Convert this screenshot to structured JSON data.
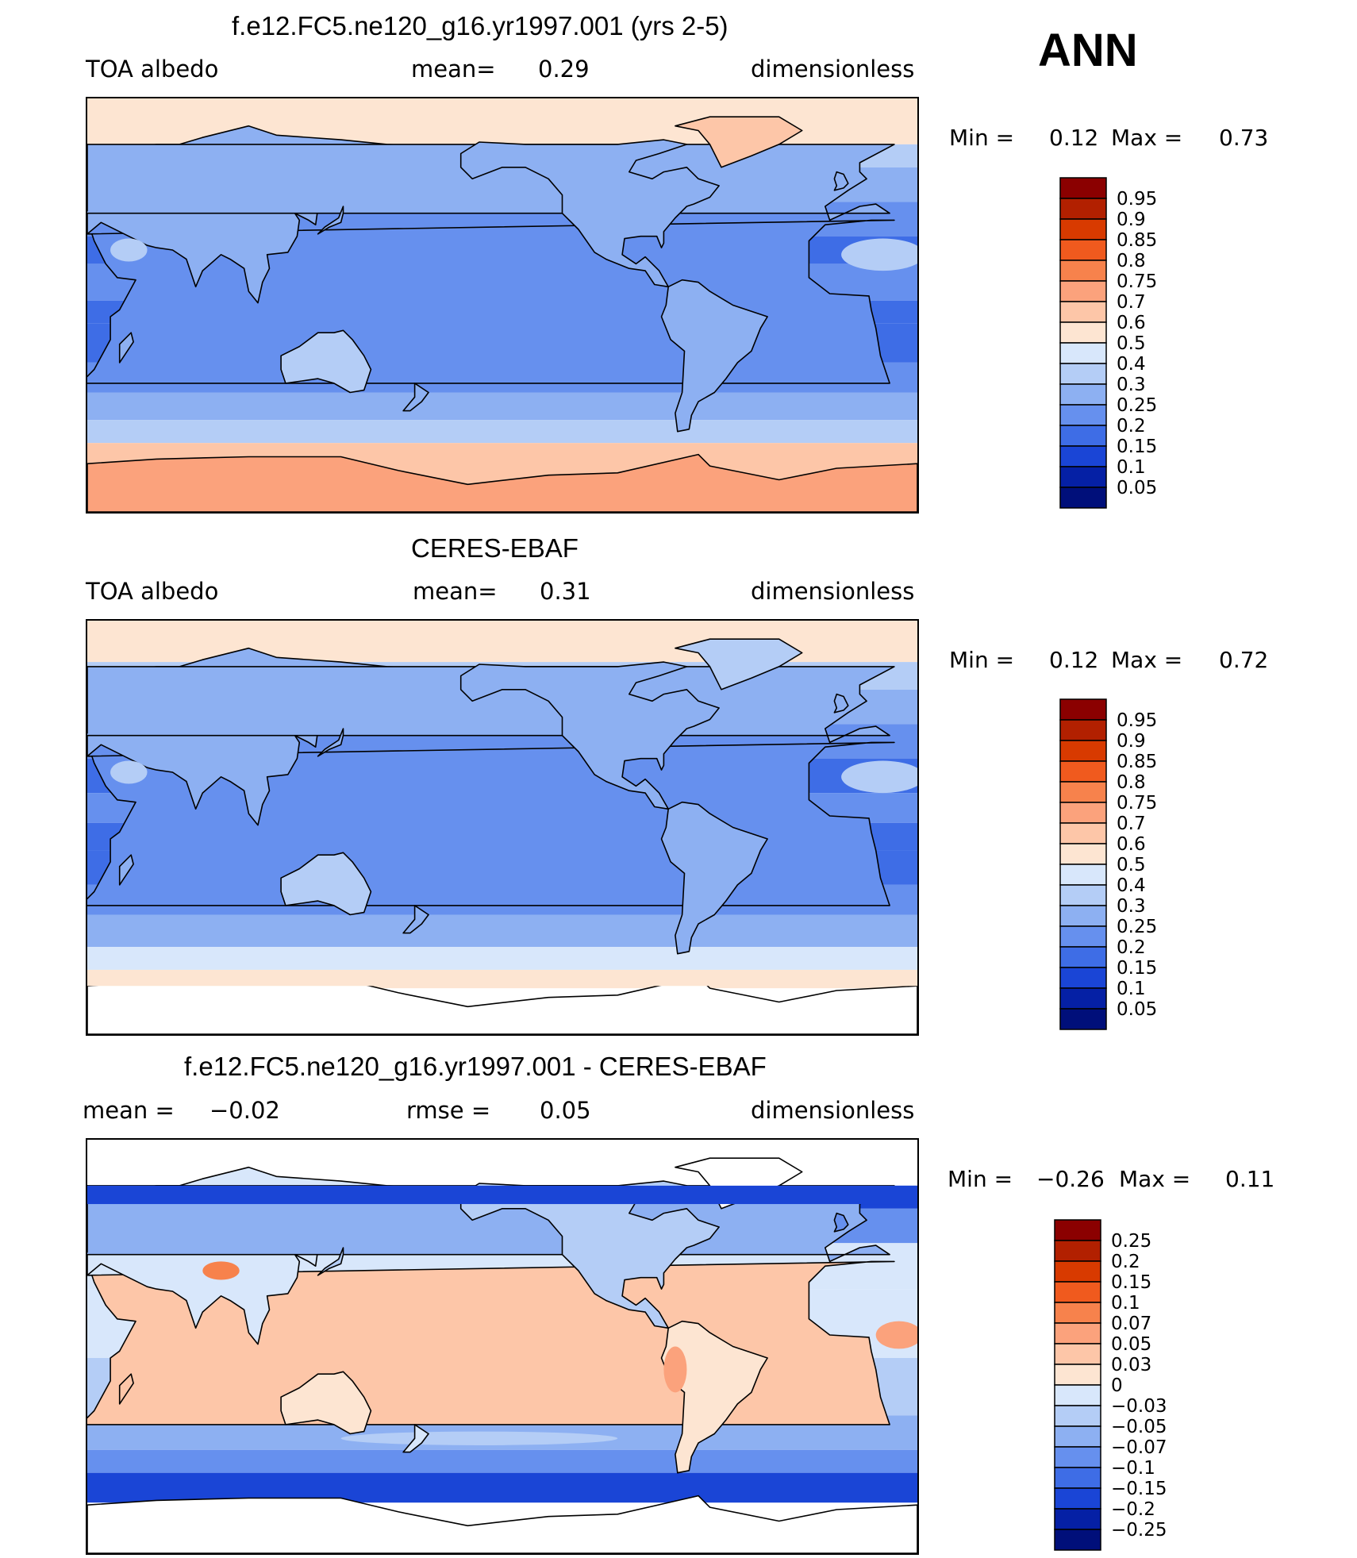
{
  "season_label": "ANN",
  "panels": [
    {
      "title": "f.e12.FC5.ne120_g16.yr1997.001 (yrs 2-5)",
      "left_label": "TOA  albedo",
      "center_label": "mean=",
      "center_value": "0.29",
      "right_label": "dimensionless",
      "min_label": "Min =",
      "min_value": "0.12",
      "max_label": "Max =",
      "max_value": "0.73",
      "kind": "field",
      "colorbar_ticks": [
        "0.95",
        "0.9",
        "0.85",
        "0.8",
        "0.75",
        "0.7",
        "0.6",
        "0.5",
        "0.4",
        "0.3",
        "0.25",
        "0.2",
        "0.15",
        "0.1",
        "0.05"
      ]
    },
    {
      "title": "CERES-EBAF",
      "left_label": "TOA  albedo",
      "center_label": "mean=",
      "center_value": "0.31",
      "right_label": "dimensionless",
      "min_label": "Min =",
      "min_value": "0.12",
      "max_label": "Max =",
      "max_value": "0.72",
      "kind": "field",
      "colorbar_ticks": [
        "0.95",
        "0.9",
        "0.85",
        "0.8",
        "0.75",
        "0.7",
        "0.6",
        "0.5",
        "0.4",
        "0.3",
        "0.25",
        "0.2",
        "0.15",
        "0.1",
        "0.05"
      ]
    },
    {
      "title": "f.e12.FC5.ne120_g16.yr1997.001 - CERES-EBAF",
      "left_label": "mean =",
      "left_value": "−0.02",
      "center_label": "rmse =",
      "center_value": "0.05",
      "right_label": "dimensionless",
      "min_label": "Min =",
      "min_value": "−0.26",
      "max_label": "Max =",
      "max_value": "0.11",
      "kind": "diff",
      "colorbar_ticks": [
        "0.25",
        "0.2",
        "0.15",
        "0.1",
        "0.07",
        "0.05",
        "0.03",
        "0",
        "−0.03",
        "−0.05",
        "−0.07",
        "−0.1",
        "−0.15",
        "−0.2",
        "−0.25"
      ]
    }
  ],
  "colorbar_colors": [
    "#8b0000",
    "#b22000",
    "#d83a00",
    "#f05a1e",
    "#f7824c",
    "#fba27c",
    "#fdc6a8",
    "#fde5d2",
    "#d8e7fb",
    "#b4cdf6",
    "#8db0f2",
    "#6690ee",
    "#3e6de6",
    "#1a45d6",
    "#0520a5",
    "#000f7a"
  ],
  "chart_data": [
    {
      "type": "heatmap",
      "title": "f.e12.FC5.ne120_g16.yr1997.001 (yrs 2-5)",
      "variable": "TOA  albedo",
      "units": "dimensionless",
      "mean": 0.29,
      "min": 0.12,
      "max": 0.73,
      "contour_levels": [
        0.05,
        0.1,
        0.15,
        0.2,
        0.25,
        0.3,
        0.4,
        0.5,
        0.6,
        0.7,
        0.75,
        0.8,
        0.85,
        0.9,
        0.95
      ]
    },
    {
      "type": "heatmap",
      "title": "CERES-EBAF",
      "variable": "TOA  albedo",
      "units": "dimensionless",
      "mean": 0.31,
      "min": 0.12,
      "max": 0.72,
      "contour_levels": [
        0.05,
        0.1,
        0.15,
        0.2,
        0.25,
        0.3,
        0.4,
        0.5,
        0.6,
        0.7,
        0.75,
        0.8,
        0.85,
        0.9,
        0.95
      ]
    },
    {
      "type": "heatmap",
      "title": "f.e12.FC5.ne120_g16.yr1997.001 - CERES-EBAF",
      "units": "dimensionless",
      "mean": -0.02,
      "rmse": 0.05,
      "min": -0.26,
      "max": 0.11,
      "contour_levels": [
        -0.25,
        -0.2,
        -0.15,
        -0.1,
        -0.07,
        -0.05,
        -0.03,
        0,
        0.03,
        0.05,
        0.07,
        0.1,
        0.15,
        0.2,
        0.25
      ]
    }
  ]
}
